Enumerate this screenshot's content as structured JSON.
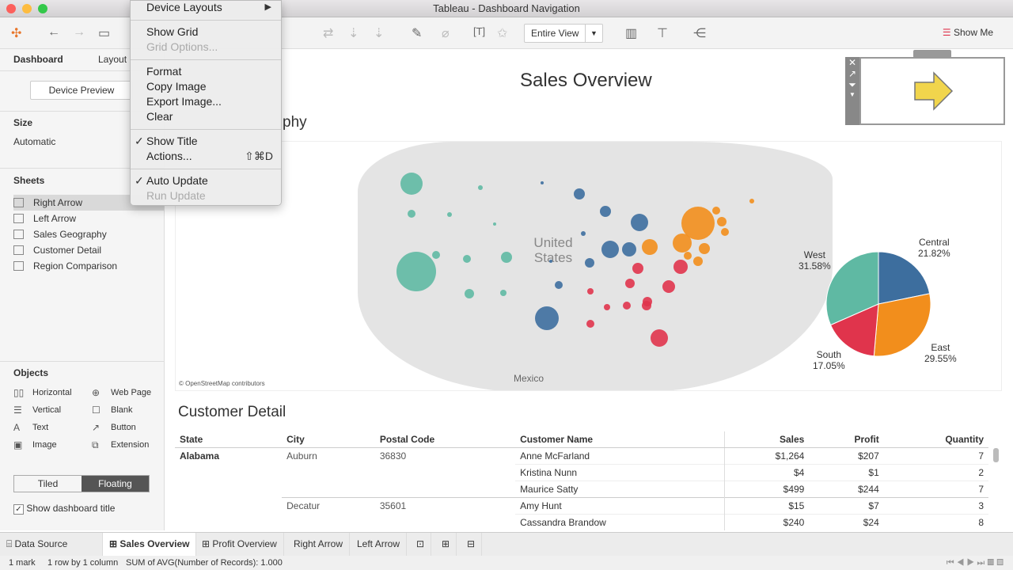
{
  "window": {
    "title": "Tableau - Dashboard Navigation"
  },
  "toolbar": {
    "fit": "Entire View",
    "show_me": "Show Me"
  },
  "menu": {
    "items": [
      {
        "label": "Device Layouts"
      },
      {
        "label": "Show Grid"
      },
      {
        "label": "Grid Options..."
      },
      {
        "label": "Format"
      },
      {
        "label": "Copy Image"
      },
      {
        "label": "Export Image..."
      },
      {
        "label": "Clear"
      },
      {
        "label": "Show Title"
      },
      {
        "label": "Actions..."
      },
      {
        "label": "Auto Update"
      },
      {
        "label": "Run Update"
      }
    ],
    "shortcut": "⇧⌘D"
  },
  "left": {
    "tabs": [
      "Dashboard",
      "Layout"
    ],
    "device_preview": "Device Preview",
    "size_label": "Size",
    "size_value": "Automatic",
    "sheets_label": "Sheets",
    "sheets": [
      "Right Arrow",
      "Left Arrow",
      "Sales Geography",
      "Customer Detail",
      "Region Comparison"
    ],
    "objects_label": "Objects",
    "objects": [
      "Horizontal",
      "Web Page",
      "Vertical",
      "Blank",
      "Text",
      "Button",
      "Image",
      "Extension"
    ],
    "tiled": "Tiled",
    "floating": "Floating",
    "show_title": "Show dashboard title"
  },
  "dashboard": {
    "title": "Sales Overview",
    "map_title_fragment": "phy",
    "map_label": "United States",
    "mexico": "Mexico",
    "credit": "© OpenStreetMap contributors",
    "pie": [
      {
        "region": "West",
        "pct": "31.58%",
        "value": 31.58,
        "color": "#5fb9a3"
      },
      {
        "region": "Central",
        "pct": "21.82%",
        "value": 21.82,
        "color": "#3d6e9e"
      },
      {
        "region": "East",
        "pct": "29.55%",
        "value": 29.55,
        "color": "#f28e1c"
      },
      {
        "region": "South",
        "pct": "17.05%",
        "value": 17.05,
        "color": "#e0344c"
      }
    ],
    "table_title": "Customer Detail",
    "columns": [
      "State",
      "City",
      "Postal Code",
      "Customer Name",
      "Sales",
      "Profit",
      "Quantity"
    ],
    "rows": [
      [
        "Alabama",
        "Auburn",
        "36830",
        "Anne McFarland",
        "$1,264",
        "$207",
        "7"
      ],
      [
        "",
        "",
        "",
        "Kristina Nunn",
        "$4",
        "$1",
        "2"
      ],
      [
        "",
        "",
        "",
        "Maurice Satty",
        "$499",
        "$244",
        "7"
      ],
      [
        "",
        "Decatur",
        "35601",
        "Amy Hunt",
        "$15",
        "$7",
        "3"
      ],
      [
        "",
        "",
        "",
        "Cassandra Brandow",
        "$240",
        "$24",
        "8"
      ]
    ]
  },
  "bottom_tabs": [
    "Data Source",
    "Sales Overview",
    "Profit Overview",
    "Right Arrow",
    "Left Arrow"
  ],
  "status": [
    "1 mark",
    "1 row by 1 column",
    "SUM of AVG(Number of Records): 1.000"
  ]
}
